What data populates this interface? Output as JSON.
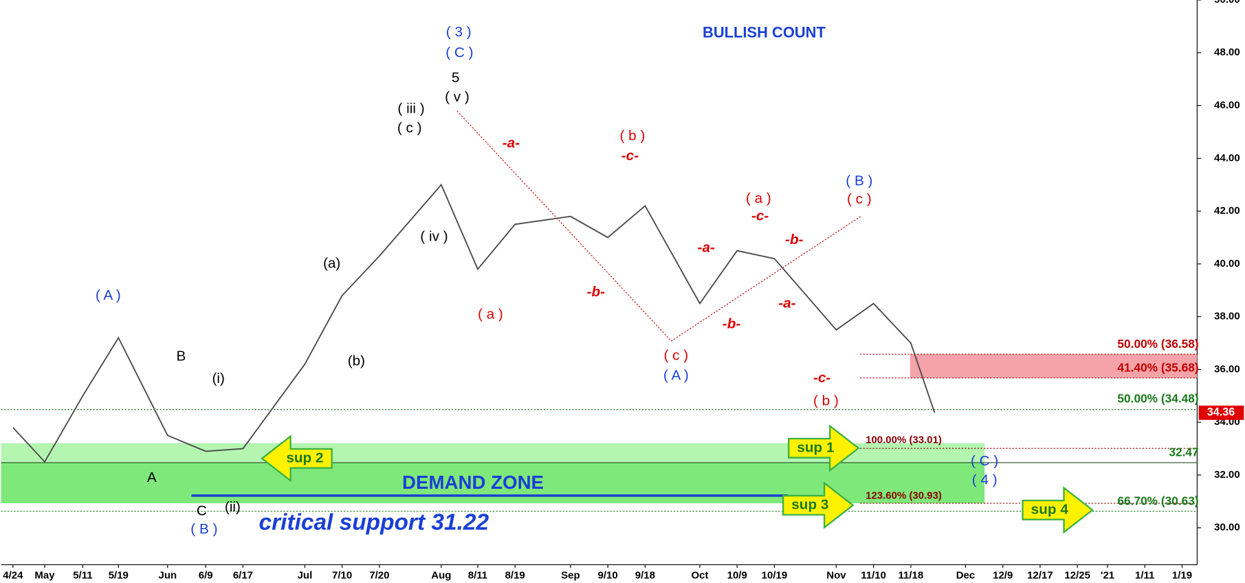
{
  "chart_data": {
    "type": "line",
    "title": "BULLISH COUNT",
    "color": "#4a4a4a",
    "categories": [
      "4/24",
      "May",
      "5/11",
      "5/19",
      "Jun",
      "6/9",
      "6/17",
      "Jul",
      "7/10",
      "7/20",
      "Aug",
      "8/11",
      "8/19",
      "Sep",
      "9/10",
      "9/18",
      "Oct",
      "10/9",
      "10/19",
      "Nov",
      "11/10",
      "11/18",
      null,
      "Dec",
      "12/9",
      "12/17",
      "12/25",
      "'21",
      "1/11",
      "1/19"
    ],
    "values": [
      33.8,
      32.5,
      35.0,
      37.2,
      33.5,
      32.9,
      33.0,
      36.2,
      38.8,
      40.3,
      43.0,
      39.8,
      41.5,
      41.8,
      41.0,
      42.2,
      38.5,
      40.5,
      40.2,
      37.5,
      38.5,
      37.0,
      34.36,
      null,
      null,
      null,
      null,
      null,
      null,
      null
    ],
    "ylim": [
      28.6,
      50
    ],
    "yticks": [
      {
        "value": 30,
        "label": "30.00"
      },
      {
        "value": 32,
        "label": "32.00"
      },
      {
        "value": 34,
        "label": "34.00"
      },
      {
        "value": 36,
        "label": "36.00"
      },
      {
        "value": 38,
        "label": "38.00"
      },
      {
        "value": 40,
        "label": "40.00"
      },
      {
        "value": 42,
        "label": "42.00"
      },
      {
        "value": 44,
        "label": "44.00"
      },
      {
        "value": 46,
        "label": "46.00"
      },
      {
        "value": 48,
        "label": "48.00"
      },
      {
        "value": 50,
        "label": "50.00"
      }
    ],
    "levels": [
      {
        "label": "50.00% (36.58)",
        "value": 36.58,
        "color": "#c00000"
      },
      {
        "label": "41.40% (35.68)",
        "value": 35.68,
        "color": "#c00000"
      },
      {
        "label": "50.00% (34.48)",
        "value": 34.48,
        "color": "#1a7a1a"
      },
      {
        "label": "100.00% (33.01)",
        "value": 33.01,
        "color": "#8b0000"
      },
      {
        "label": "32.47",
        "value": 32.47,
        "color": "#1a7a1a"
      },
      {
        "label": "123.60% (30.93)",
        "value": 30.93,
        "color": "#8b0000"
      },
      {
        "label": "66.70% (30.63)",
        "value": 30.63,
        "color": "#1a7a1a"
      }
    ],
    "demand_zone": {
      "label": "DEMAND ZONE",
      "range": [
        30.93,
        33.21
      ]
    },
    "critical_support": {
      "label": "critical support 31.22",
      "value": 31.22
    },
    "annotations": [
      {
        "text": "( 3 )",
        "color": "#1a3fd6"
      },
      {
        "text": "( C )",
        "color": "#1a3fd6"
      },
      {
        "text": "( A )",
        "color": "#1a3fd6"
      },
      {
        "text": "( B )",
        "color": "#1a3fd6"
      },
      {
        "text": "( A )",
        "color": "#1a3fd6"
      },
      {
        "text": "( B )",
        "color": "#1a3fd6"
      },
      {
        "text": "( C )",
        "color": "#1a3fd6"
      },
      {
        "text": "( 4 )",
        "color": "#1a3fd6"
      },
      {
        "text": "5",
        "color": "#000000"
      },
      {
        "text": "( v )",
        "color": "#000000"
      },
      {
        "text": "( iii )",
        "color": "#000000"
      },
      {
        "text": "( c )",
        "color": "#000000"
      },
      {
        "text": "( iv )",
        "color": "#000000"
      },
      {
        "text": "(a)",
        "color": "#000000"
      },
      {
        "text": "(b)",
        "color": "#000000"
      },
      {
        "text": "B",
        "color": "#000000"
      },
      {
        "text": "(i)",
        "color": "#000000"
      },
      {
        "text": "A",
        "color": "#000000"
      },
      {
        "text": "C",
        "color": "#000000"
      },
      {
        "text": "(ii)",
        "color": "#000000"
      },
      {
        "text": "-a-",
        "color": "#e00000"
      },
      {
        "text": "( b )",
        "color": "#e00000"
      },
      {
        "text": "-c-",
        "color": "#e00000"
      },
      {
        "text": "( a )",
        "color": "#e00000"
      },
      {
        "text": "-b-",
        "color": "#e00000"
      },
      {
        "text": "( c )",
        "color": "#e00000"
      },
      {
        "text": "-a-",
        "color": "#e00000"
      },
      {
        "text": "( a )",
        "color": "#e00000"
      },
      {
        "text": "-c-",
        "color": "#e00000"
      },
      {
        "text": "-b-",
        "color": "#e00000"
      },
      {
        "text": "-b-",
        "color": "#e00000"
      },
      {
        "text": "-a-",
        "color": "#e00000"
      },
      {
        "text": "-c-",
        "color": "#e00000"
      },
      {
        "text": "( b )",
        "color": "#e00000"
      },
      {
        "text": "( c )",
        "color": "#e00000"
      }
    ],
    "arrows": [
      {
        "text": "sup 1",
        "direction": "right"
      },
      {
        "text": "sup 2",
        "direction": "left"
      },
      {
        "text": "sup 3",
        "direction": "right"
      },
      {
        "text": "sup 4",
        "direction": "right"
      }
    ]
  }
}
